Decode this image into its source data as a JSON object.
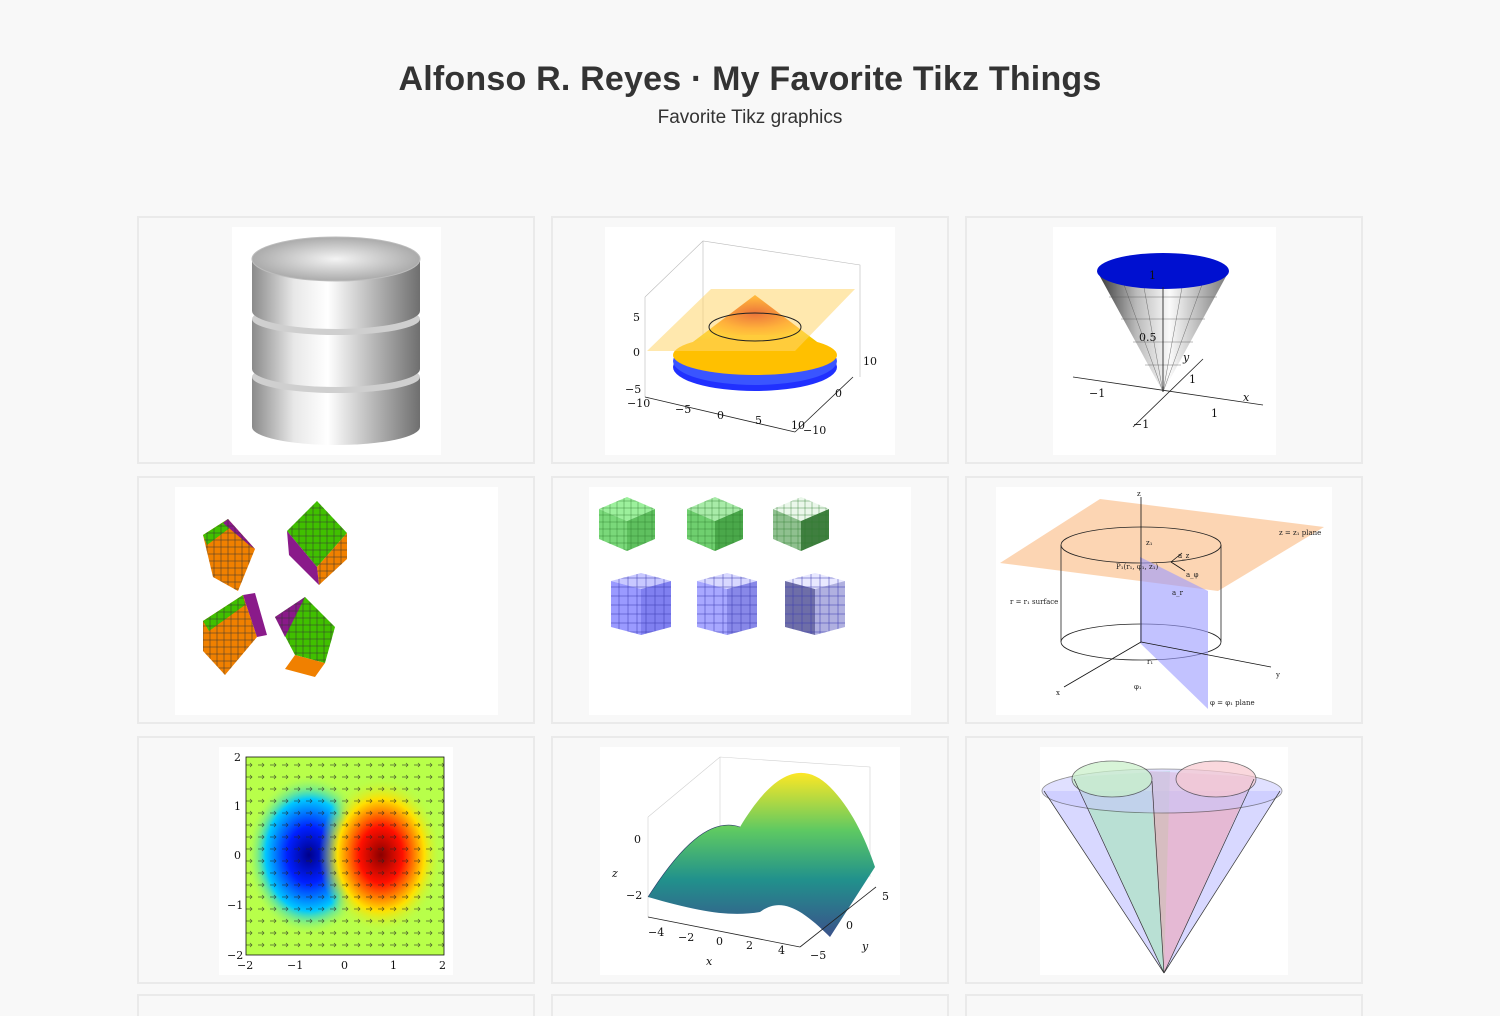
{
  "header": {
    "title": "Alfonso R. Reyes · My Favorite Tikz Things",
    "subtitle": "Favorite Tikz graphics"
  },
  "gallery": {
    "surface_cone": {
      "ticks_z": [
        "5",
        "0",
        "−5"
      ],
      "ticks_x": [
        "−10",
        "−5",
        "0",
        "5",
        "10"
      ],
      "ticks_y": [
        "10",
        "0",
        "−10"
      ]
    },
    "inverted_cone": {
      "labels": [
        "1",
        "0.5",
        "y",
        "x",
        "−1",
        "1",
        "1",
        "−1"
      ]
    },
    "cylindrical_coords": {
      "labels": [
        "z",
        "z = z₁ plane",
        "z₁",
        "P₁(r₁, φ₁, z₁)",
        "a_z",
        "a_φ",
        "a_r",
        "r = r₁ surface",
        "r₁",
        "y",
        "x",
        "φ₁",
        "φ = φ₁ plane"
      ]
    },
    "vector_field": {
      "ticks_x": [
        "−2",
        "−1",
        "0",
        "1",
        "2"
      ],
      "ticks_y": [
        "2",
        "1",
        "0",
        "−1",
        "−2"
      ]
    },
    "saddle_surface": {
      "ticks_z": [
        "0",
        "−2"
      ],
      "ticks_x": [
        "−4",
        "−2",
        "0",
        "2",
        "4"
      ],
      "ticks_y": [
        "5",
        "0",
        "−5"
      ],
      "xlabel": "x",
      "ylabel": "y",
      "zlabel": "z"
    }
  }
}
